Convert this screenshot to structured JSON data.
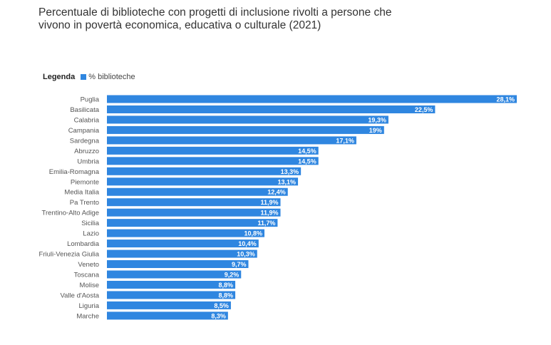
{
  "chart_data": {
    "type": "bar",
    "orientation": "horizontal",
    "title": "Percentuale di biblioteche con progetti di inclusione rivolti a persone che vivono in povertà economica, educativa o culturale (2021)",
    "legend_title": "Legenda",
    "legend": [
      "% biblioteche"
    ],
    "color": "#2f86e0",
    "categories": [
      "Puglia",
      "Basilicata",
      "Calabria",
      "Campania",
      "Sardegna",
      "Abruzzo",
      "Umbria",
      "Emilia-Romagna",
      "Piemonte",
      "Media Italia",
      "Pa Trento",
      "Trentino-Alto Adige",
      "Sicilia",
      "Lazio",
      "Lombardia",
      "Friuli-Venezia Giulia",
      "Veneto",
      "Toscana",
      "Molise",
      "Valle d'Aosta",
      "Liguria",
      "Marche"
    ],
    "values": [
      28.1,
      22.5,
      19.3,
      19,
      17.1,
      14.5,
      14.5,
      13.3,
      13.1,
      12.4,
      11.9,
      11.9,
      11.7,
      10.8,
      10.4,
      10.3,
      9.7,
      9.2,
      8.8,
      8.8,
      8.5,
      8.3
    ],
    "labels": [
      "28,1%",
      "22,5%",
      "19,3%",
      "19%",
      "17,1%",
      "14,5%",
      "14,5%",
      "13,3%",
      "13,1%",
      "12,4%",
      "11,9%",
      "11,9%",
      "11,7%",
      "10,8%",
      "10,4%",
      "10,3%",
      "9,7%",
      "9,2%",
      "8,8%",
      "8,8%",
      "8,5%",
      "8,3%"
    ]
  }
}
